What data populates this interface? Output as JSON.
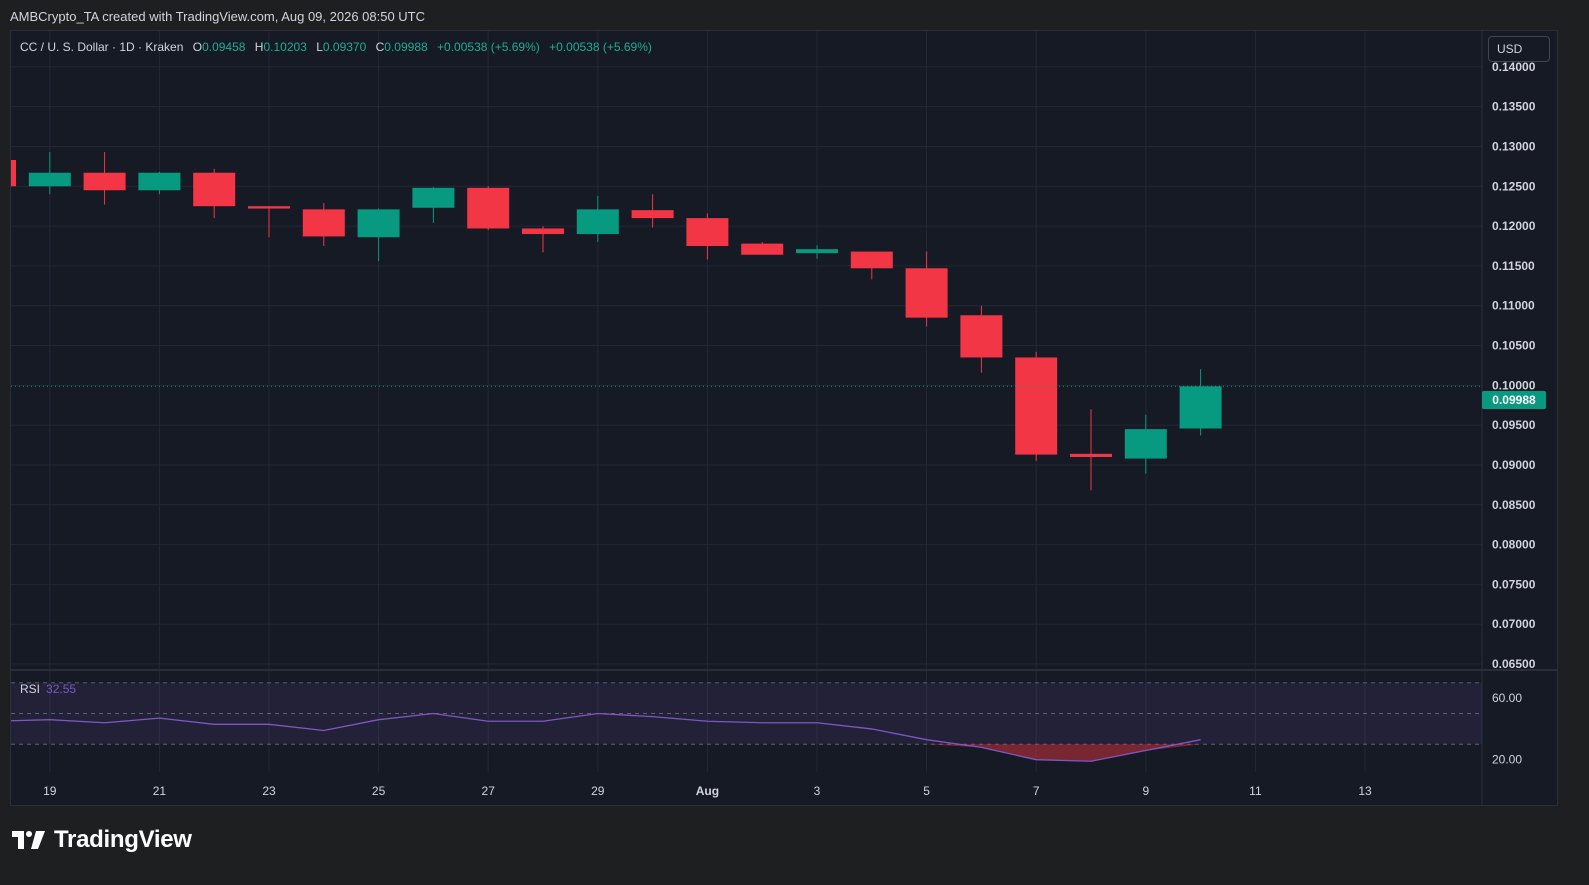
{
  "header": {
    "credit": "AMBCrypto_TA created with TradingView.com, Aug 09, 2026 08:50 UTC"
  },
  "legend": {
    "symbol": "CC / U. S. Dollar · 1D · Kraken",
    "o_label": "O",
    "o_value": "0.09458",
    "h_label": "H",
    "h_value": "0.10203",
    "l_label": "L",
    "l_value": "0.09370",
    "c_label": "C",
    "c_value": "0.09988",
    "change1": "+0.00538 (+5.69%)",
    "change2": "+0.00538 (+5.69%)"
  },
  "currency_button": "USD",
  "last_price_label": "0.09988",
  "rsi": {
    "label": "RSI",
    "value": "32.55"
  },
  "brand": {
    "name": "TradingView",
    "logo_icon": "tradingview-logo-icon"
  },
  "colors": {
    "up": "#089981",
    "down": "#f23645",
    "rsi_line": "#7e57c2",
    "grid": "#232734",
    "text": "#d1d4dc",
    "bg": "#161a25"
  },
  "chart_data": {
    "type": "candlestick",
    "price_axis": {
      "ticks": [
        "0.14000",
        "0.13500",
        "0.13000",
        "0.12500",
        "0.12000",
        "0.11500",
        "0.11000",
        "0.10500",
        "0.10000",
        "0.09500",
        "0.09000",
        "0.08500",
        "0.08000",
        "0.07500",
        "0.07000",
        "0.06500"
      ],
      "range": [
        0.0645,
        0.1445
      ]
    },
    "time_axis": {
      "ticks": [
        {
          "label": "19",
          "index": 1
        },
        {
          "label": "21",
          "index": 3
        },
        {
          "label": "23",
          "index": 5
        },
        {
          "label": "25",
          "index": 7
        },
        {
          "label": "27",
          "index": 9
        },
        {
          "label": "29",
          "index": 11
        },
        {
          "label": "Aug",
          "index": 13
        },
        {
          "label": "3",
          "index": 15
        },
        {
          "label": "5",
          "index": 17
        },
        {
          "label": "7",
          "index": 19
        },
        {
          "label": "9",
          "index": 21
        },
        {
          "label": "11",
          "index": 23
        },
        {
          "label": "13",
          "index": 25
        }
      ]
    },
    "candles": [
      {
        "o": 0.1283,
        "h": 0.1283,
        "l": 0.125,
        "c": 0.125
      },
      {
        "o": 0.125,
        "h": 0.1293,
        "l": 0.124,
        "c": 0.1267
      },
      {
        "o": 0.1267,
        "h": 0.1293,
        "l": 0.1227,
        "c": 0.1245
      },
      {
        "o": 0.1245,
        "h": 0.1268,
        "l": 0.124,
        "c": 0.1267
      },
      {
        "o": 0.1267,
        "h": 0.1272,
        "l": 0.121,
        "c": 0.1225
      },
      {
        "o": 0.1225,
        "h": 0.1225,
        "l": 0.1186,
        "c": 0.1222
      },
      {
        "o": 0.1221,
        "h": 0.1229,
        "l": 0.1175,
        "c": 0.1187
      },
      {
        "o": 0.1186,
        "h": 0.1222,
        "l": 0.1156,
        "c": 0.1221
      },
      {
        "o": 0.1223,
        "h": 0.1249,
        "l": 0.1204,
        "c": 0.1248
      },
      {
        "o": 0.1248,
        "h": 0.125,
        "l": 0.1195,
        "c": 0.1197
      },
      {
        "o": 0.1197,
        "h": 0.12,
        "l": 0.1167,
        "c": 0.119
      },
      {
        "o": 0.119,
        "h": 0.1238,
        "l": 0.118,
        "c": 0.1221
      },
      {
        "o": 0.122,
        "h": 0.124,
        "l": 0.1198,
        "c": 0.121
      },
      {
        "o": 0.121,
        "h": 0.1216,
        "l": 0.1158,
        "c": 0.1175
      },
      {
        "o": 0.1178,
        "h": 0.118,
        "l": 0.1164,
        "c": 0.1164
      },
      {
        "o": 0.1166,
        "h": 0.1176,
        "l": 0.1159,
        "c": 0.1171
      },
      {
        "o": 0.1168,
        "h": 0.1168,
        "l": 0.1133,
        "c": 0.1147
      },
      {
        "o": 0.1147,
        "h": 0.1168,
        "l": 0.1074,
        "c": 0.1085
      },
      {
        "o": 0.1088,
        "h": 0.11,
        "l": 0.1016,
        "c": 0.1035
      },
      {
        "o": 0.1035,
        "h": 0.1042,
        "l": 0.0905,
        "c": 0.0913
      },
      {
        "o": 0.0914,
        "h": 0.097,
        "l": 0.0868,
        "c": 0.091
      },
      {
        "o": 0.0908,
        "h": 0.0963,
        "l": 0.0889,
        "c": 0.0945
      },
      {
        "o": 0.09458,
        "h": 0.10203,
        "l": 0.0937,
        "c": 0.09988
      }
    ],
    "rsi": {
      "ticks": [
        "60.00",
        "20.00"
      ],
      "range": [
        12,
        77
      ],
      "levels": [
        70,
        50,
        30
      ],
      "values": [
        45,
        46,
        44,
        47,
        43,
        43,
        39,
        46,
        50,
        45,
        45,
        50,
        48,
        45,
        44,
        44,
        40,
        33,
        28,
        20,
        19,
        26,
        33
      ]
    }
  }
}
